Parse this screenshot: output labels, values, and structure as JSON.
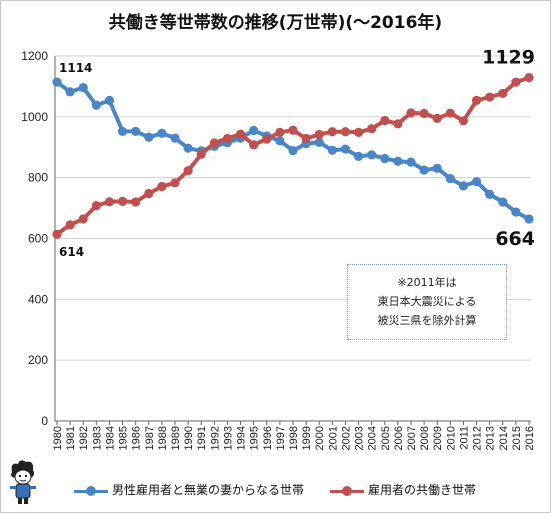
{
  "title": "共働き等世帯数の推移(万世帯)(〜2016年)",
  "note_lines": [
    "※2011年は",
    "東日本大震災による",
    "被災三県を除外計算"
  ],
  "colors": {
    "male_single": "#4a86c5",
    "dual_income": "#c0504d",
    "grid": "#d0d0d0"
  },
  "mascot_icon": "cartoon-character-icon",
  "chart_data": {
    "type": "line",
    "ylim": [
      0,
      1200
    ],
    "yticks": [
      0,
      200,
      400,
      600,
      800,
      1000,
      1200
    ],
    "grid": "horizontal",
    "legend_position": "bottom",
    "x": [
      "1980",
      "1981",
      "1982",
      "1983",
      "1984",
      "1985",
      "1986",
      "1987",
      "1988",
      "1989",
      "1990",
      "1991",
      "1992",
      "1993",
      "1994",
      "1995",
      "1996",
      "1997",
      "1998",
      "1999",
      "2000",
      "2001",
      "2002",
      "2003",
      "2004",
      "2005",
      "2006",
      "2007",
      "2008",
      "2009",
      "2010",
      "2011",
      "2012",
      "2013",
      "2014",
      "2015",
      "2016"
    ],
    "series": [
      {
        "name": "男性雇用者と無業の妻からなる世帯",
        "values": [
          1114,
          1082,
          1096,
          1038,
          1054,
          952,
          952,
          933,
          946,
          930,
          897,
          888,
          903,
          915,
          930,
          955,
          937,
          921,
          889,
          912,
          916,
          890,
          894,
          870,
          875,
          863,
          854,
          851,
          825,
          831,
          797,
          773,
          787,
          745,
          720,
          687,
          664
        ]
      },
      {
        "name": "雇用者の共働き世帯",
        "values": [
          614,
          645,
          664,
          708,
          721,
          722,
          720,
          748,
          771,
          783,
          823,
          877,
          914,
          929,
          943,
          908,
          927,
          949,
          956,
          929,
          942,
          951,
          951,
          949,
          961,
          988,
          977,
          1013,
          1011,
          995,
          1012,
          987,
          1054,
          1065,
          1077,
          1114,
          1129
        ]
      }
    ],
    "annotations": [
      {
        "series": 0,
        "index": 0,
        "text": "1114"
      },
      {
        "series": 1,
        "index": 0,
        "text": "614"
      },
      {
        "series": 1,
        "index": 36,
        "text": "1129"
      },
      {
        "series": 0,
        "index": 36,
        "text": "664"
      }
    ]
  }
}
